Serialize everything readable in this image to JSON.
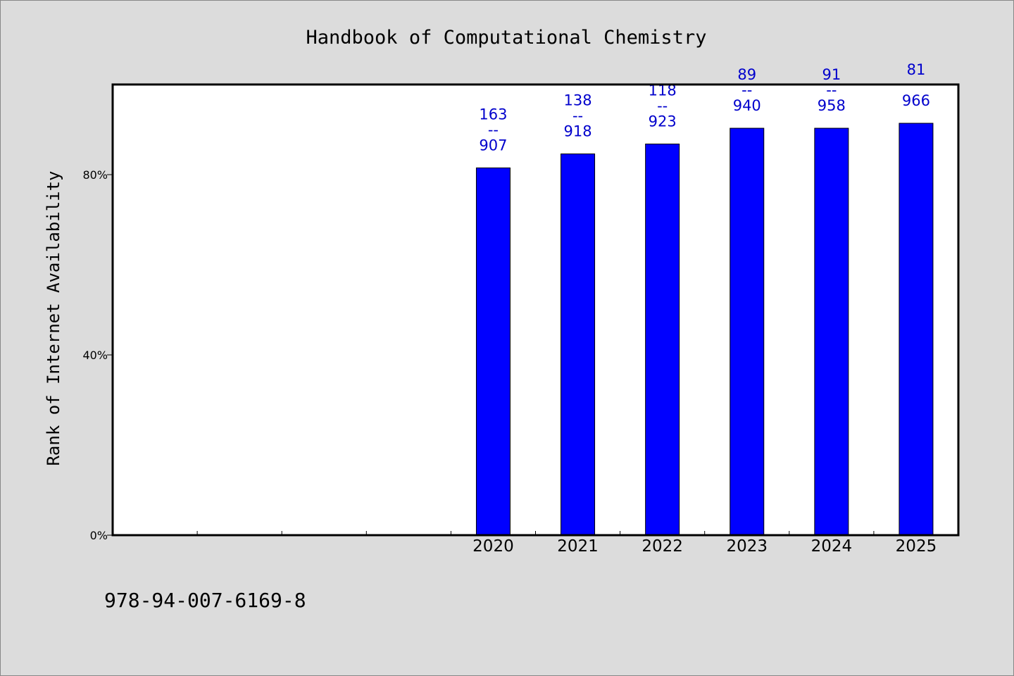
{
  "chart_data": {
    "type": "bar",
    "title": "Handbook of Computational Chemistry",
    "ylabel": "Rank of Internet Availability",
    "xlabel": "",
    "categories": [
      "2020",
      "2021",
      "2022",
      "2023",
      "2024",
      "2025"
    ],
    "values": [
      81.5,
      84.6,
      86.8,
      90.3,
      90.3,
      91.4
    ],
    "data_labels": [
      {
        "top": "163",
        "sep": "--",
        "bottom": "907"
      },
      {
        "top": "138",
        "sep": "--",
        "bottom": "918"
      },
      {
        "top": "118",
        "sep": "--",
        "bottom": "923"
      },
      {
        "top": "89",
        "sep": "--",
        "bottom": "940"
      },
      {
        "top": "91",
        "sep": "--",
        "bottom": "958"
      },
      {
        "top": "81",
        "sep": "",
        "bottom": "966"
      }
    ],
    "empty_leading_slots": 4,
    "ylim": [
      0,
      100
    ],
    "yticks": [
      0,
      40,
      80
    ],
    "ytick_labels": [
      "0%",
      "40%",
      "80%"
    ],
    "grid": false,
    "bar_color": "#0000ff",
    "label_color": "#0000cc"
  },
  "footer": {
    "isbn": "978-94-007-6169-8"
  }
}
